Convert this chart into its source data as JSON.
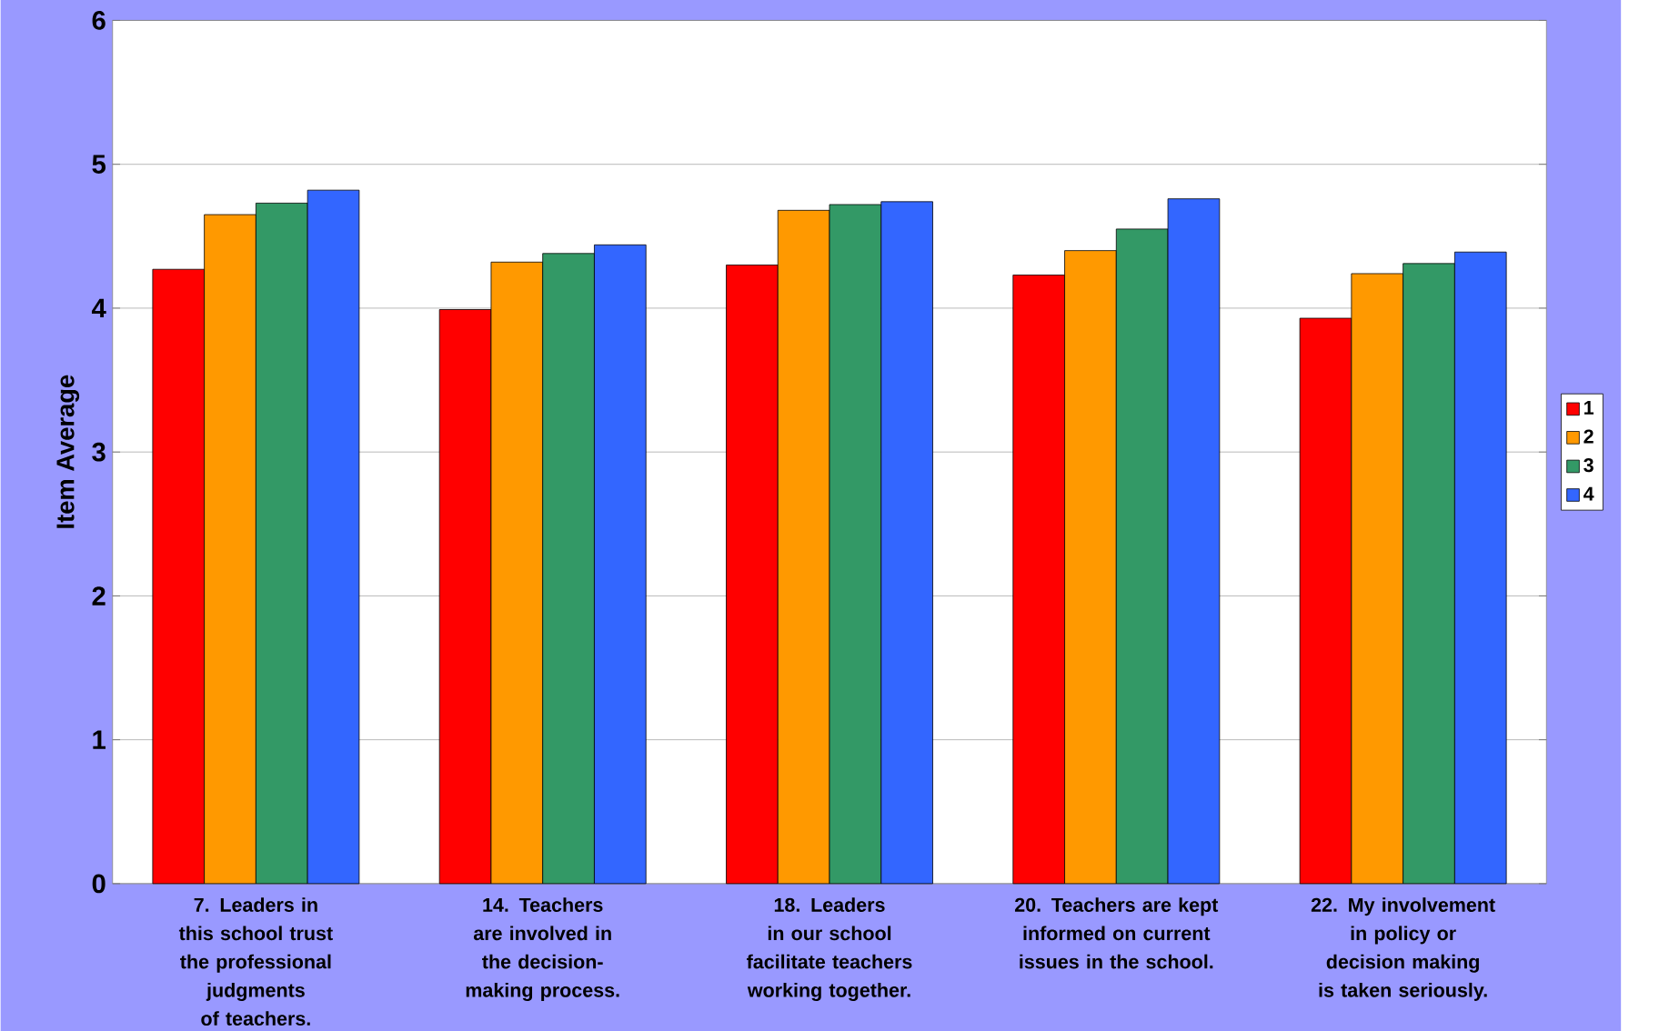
{
  "chart_data": {
    "type": "bar",
    "ylabel": "Item Average",
    "categories": [
      "7. Leaders in this school trust the professional judgments of teachers.",
      "14. Teachers are involved in the decision-making process.",
      "18. Leaders in our school facilitate teachers working together.",
      "20. Teachers are kept informed on current issues in the school.",
      "22. My involvement in policy or decision making is taken seriously."
    ],
    "series": [
      {
        "name": "1",
        "color": "#ff0000",
        "values": [
          4.27,
          3.99,
          4.3,
          4.23,
          3.93
        ]
      },
      {
        "name": "2",
        "color": "#ff9900",
        "values": [
          4.65,
          4.32,
          4.68,
          4.4,
          4.24
        ]
      },
      {
        "name": "3",
        "color": "#339966",
        "values": [
          4.73,
          4.38,
          4.72,
          4.55,
          4.31
        ]
      },
      {
        "name": "4",
        "color": "#3366ff",
        "values": [
          4.82,
          4.44,
          4.74,
          4.76,
          4.39
        ]
      }
    ],
    "ylim": [
      0,
      6
    ],
    "yticks": [
      0,
      1,
      2,
      3,
      4,
      5,
      6
    ],
    "grid": "y",
    "legend": "right"
  }
}
